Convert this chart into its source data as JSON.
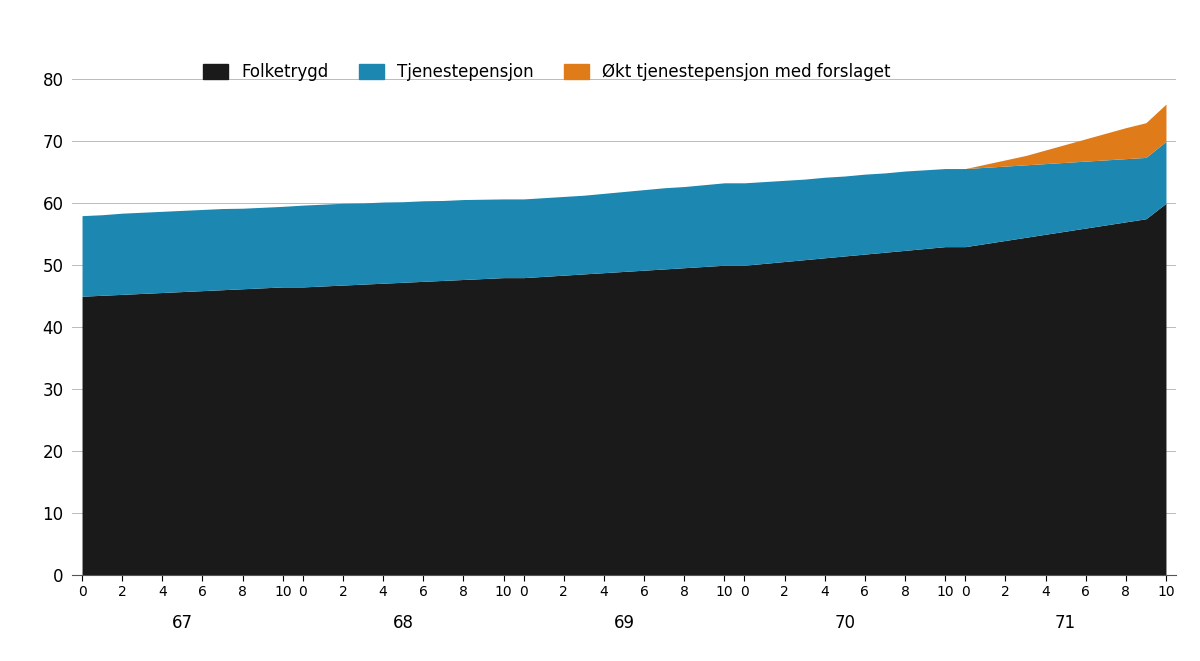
{
  "legend_labels": [
    "Folketrygd",
    "Tjenestepensjon",
    "Økt tjenestepensjon med forslaget"
  ],
  "colors": [
    "#1a1a1a",
    "#1c87b0",
    "#e07b1a"
  ],
  "year_groups": [
    67,
    68,
    69,
    70,
    71
  ],
  "n_points_per_group": 11,
  "ylim": [
    0,
    80
  ],
  "yticks": [
    0,
    10,
    20,
    30,
    40,
    50,
    60,
    70,
    80
  ],
  "background_color": "#ffffff",
  "grid_color": "#bbbbbb",
  "folketrygd": [
    45.0,
    45.15,
    45.3,
    45.45,
    45.6,
    45.75,
    45.9,
    46.05,
    46.2,
    46.35,
    46.5,
    46.5,
    46.65,
    46.8,
    46.95,
    47.1,
    47.25,
    47.4,
    47.55,
    47.7,
    47.85,
    48.0,
    48.0,
    48.2,
    48.4,
    48.6,
    48.8,
    49.0,
    49.2,
    49.4,
    49.6,
    49.8,
    50.0,
    50.0,
    50.3,
    50.6,
    50.9,
    51.2,
    51.5,
    51.8,
    52.1,
    52.4,
    52.7,
    53.0,
    53.0,
    53.5,
    54.0,
    54.5,
    55.0,
    55.5,
    56.0,
    56.5,
    57.0,
    57.5,
    60.0
  ],
  "tjenestepensjon": [
    13.0,
    13.0,
    13.1,
    13.1,
    13.1,
    13.1,
    13.1,
    13.1,
    13.0,
    13.0,
    13.0,
    13.2,
    13.2,
    13.2,
    13.1,
    13.1,
    13.0,
    13.0,
    12.9,
    12.9,
    12.8,
    12.7,
    12.7,
    12.7,
    12.7,
    12.7,
    12.8,
    12.9,
    13.0,
    13.1,
    13.1,
    13.2,
    13.3,
    13.3,
    13.2,
    13.1,
    13.0,
    13.0,
    12.9,
    12.9,
    12.8,
    12.8,
    12.7,
    12.6,
    12.6,
    12.3,
    12.0,
    11.7,
    11.4,
    11.1,
    10.8,
    10.5,
    10.2,
    9.9,
    10.0
  ],
  "okt_tjenestepensjon": [
    0,
    0,
    0,
    0,
    0,
    0,
    0,
    0,
    0,
    0,
    0,
    0,
    0,
    0,
    0,
    0,
    0,
    0,
    0,
    0,
    0,
    0,
    0,
    0,
    0,
    0,
    0,
    0,
    0,
    0,
    0,
    0,
    0,
    0,
    0,
    0,
    0,
    0,
    0,
    0,
    0,
    0,
    0,
    0,
    0,
    0.5,
    1.0,
    1.5,
    2.2,
    2.9,
    3.6,
    4.3,
    5.0,
    5.6,
    6.0
  ]
}
